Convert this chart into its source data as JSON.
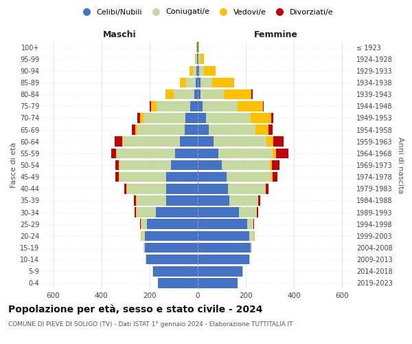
{
  "age_groups": [
    "0-4",
    "5-9",
    "10-14",
    "15-19",
    "20-24",
    "25-29",
    "30-34",
    "35-39",
    "40-44",
    "45-49",
    "50-54",
    "55-59",
    "60-64",
    "65-69",
    "70-74",
    "75-79",
    "80-84",
    "85-89",
    "90-94",
    "95-99",
    "100+"
  ],
  "birth_years": [
    "2019-2023",
    "2014-2018",
    "2009-2013",
    "2004-2008",
    "1999-2003",
    "1994-1998",
    "1989-1993",
    "1984-1988",
    "1979-1983",
    "1974-1978",
    "1969-1973",
    "1964-1968",
    "1959-1963",
    "1954-1958",
    "1949-1953",
    "1944-1948",
    "1939-1943",
    "1934-1938",
    "1929-1933",
    "1924-1928",
    "≤ 1923"
  ],
  "male": {
    "celibi": [
      165,
      185,
      215,
      220,
      220,
      210,
      175,
      130,
      130,
      130,
      110,
      95,
      75,
      55,
      50,
      30,
      15,
      8,
      5,
      3,
      2
    ],
    "coniugati": [
      1,
      2,
      3,
      5,
      15,
      25,
      80,
      125,
      165,
      195,
      215,
      240,
      235,
      195,
      175,
      140,
      85,
      40,
      15,
      5,
      2
    ],
    "vedovi": [
      0,
      0,
      0,
      0,
      1,
      1,
      1,
      1,
      1,
      2,
      3,
      5,
      5,
      10,
      15,
      25,
      35,
      25,
      15,
      3,
      1
    ],
    "divorziati": [
      0,
      0,
      0,
      1,
      2,
      3,
      5,
      8,
      10,
      15,
      15,
      20,
      30,
      15,
      10,
      5,
      0,
      0,
      0,
      0,
      0
    ]
  },
  "female": {
    "nubili": [
      165,
      185,
      215,
      220,
      215,
      205,
      170,
      130,
      125,
      120,
      100,
      85,
      65,
      45,
      35,
      20,
      12,
      10,
      5,
      3,
      2
    ],
    "coniugate": [
      1,
      2,
      3,
      5,
      20,
      25,
      75,
      120,
      155,
      185,
      200,
      225,
      220,
      195,
      185,
      145,
      95,
      50,
      20,
      8,
      2
    ],
    "vedove": [
      0,
      0,
      0,
      0,
      1,
      1,
      1,
      2,
      3,
      5,
      8,
      15,
      30,
      55,
      85,
      105,
      115,
      90,
      50,
      15,
      3
    ],
    "divorziate": [
      0,
      0,
      0,
      1,
      2,
      3,
      5,
      8,
      10,
      20,
      30,
      50,
      40,
      15,
      10,
      5,
      5,
      0,
      0,
      0,
      0
    ]
  },
  "colors": {
    "celibi_nubili": "#4472c4",
    "coniugati": "#c5d9a0",
    "vedovi": "#ffc000",
    "divorziati": "#c0000b"
  },
  "title": "Popolazione per età, sesso e stato civile - 2024",
  "subtitle": "COMUNE DI PIEVE DI SOLIGO (TV) - Dati ISTAT 1° gennaio 2024 - Elaborazione TUTTITALIA.IT",
  "xlabel_male": "Maschi",
  "xlabel_female": "Femmine",
  "ylabel_left": "Fasce di età",
  "ylabel_right": "Anni di nascita",
  "legend_labels": [
    "Celibi/Nubili",
    "Coniugati/e",
    "Vedovi/e",
    "Divorziati/e"
  ],
  "xlim": 650,
  "background_color": "#ffffff",
  "grid_color": "#dddddd"
}
